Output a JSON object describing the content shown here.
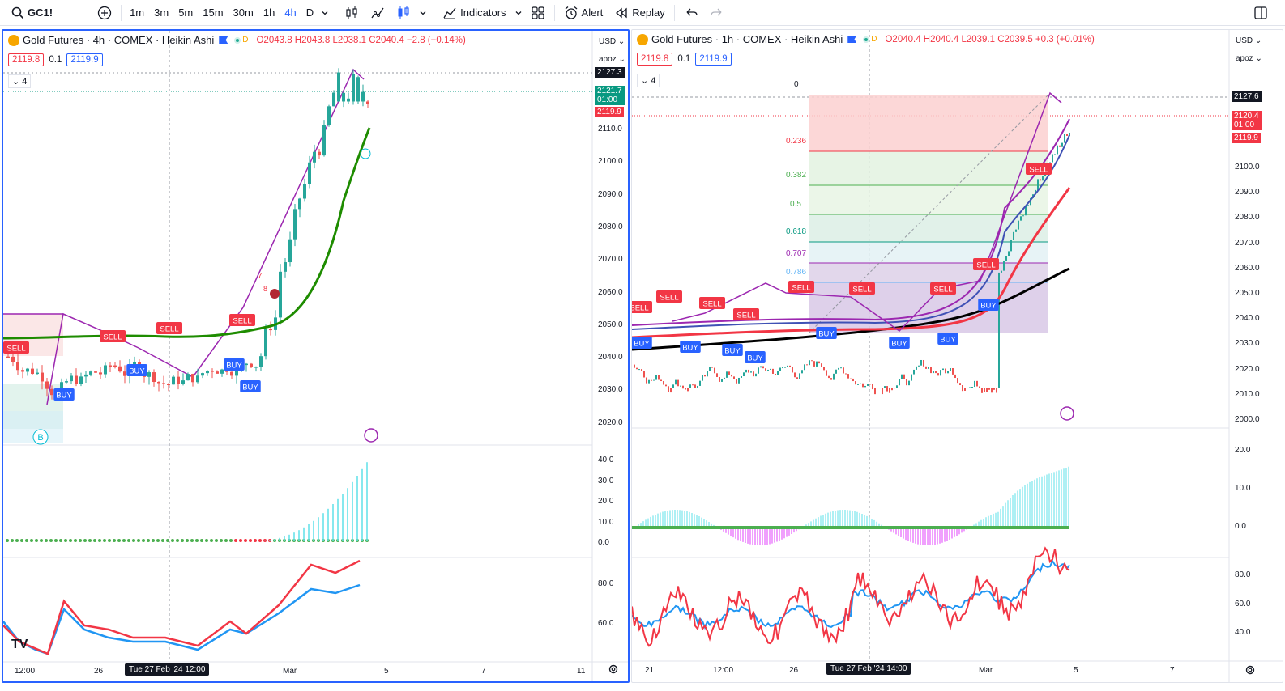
{
  "toolbar": {
    "symbol": "GC1!",
    "timeframes": [
      "1m",
      "3m",
      "5m",
      "15m",
      "30m",
      "1h",
      "4h",
      "D"
    ],
    "active_timeframe": "4h",
    "indicators_label": "Indicators",
    "alert_label": "Alert",
    "replay_label": "Replay"
  },
  "left_chart": {
    "legend": {
      "title": "Gold Futures · 4h · COMEX · Heikin Ashi",
      "badge": "D",
      "ohlc": "O2043.8 H2043.8 L2038.1 C2040.4 −2.8 (−0.14%)"
    },
    "bid": "2119.8",
    "spread": "0.1",
    "ask": "2119.9",
    "collapse_count": "4",
    "currency": "USD",
    "scale_mode": "apoz",
    "price_ticks": [
      "2110.0",
      "2100.0",
      "2090.0",
      "2080.0",
      "2070.0",
      "2060.0",
      "2050.0",
      "2040.0",
      "2030.0",
      "2020.0"
    ],
    "last_price_label": "2127.3",
    "mid_label_price": "2121.7",
    "mid_label_timer": "01:00",
    "ask_label": "2119.9",
    "osc_ticks": [
      "40.0",
      "30.0",
      "20.0",
      "10.0",
      "0.0"
    ],
    "rsi_ticks": [
      "80.0",
      "60.0"
    ],
    "date_ticks": [
      "12:00",
      "26",
      "Mar",
      "5",
      "7",
      "11"
    ],
    "cursor_date": "Tue 27 Feb '24  12:00",
    "sell_labels": [
      "SELL",
      "SELL",
      "SELL",
      "SELL"
    ],
    "buy_labels": [
      "BUY",
      "BUY",
      "BUY",
      "BUY"
    ],
    "marker_7": "7",
    "marker_8": "8",
    "marker_b": "B"
  },
  "right_chart": {
    "legend": {
      "title": "Gold Futures · 1h · COMEX · Heikin Ashi",
      "badge": "D",
      "ohlc": "O2040.4 H2040.4 L2039.1 C2039.5 +0.3 (+0.01%)"
    },
    "bid": "2119.8",
    "spread": "0.1",
    "ask": "2119.9",
    "collapse_count": "4",
    "currency": "USD",
    "scale_mode": "apoz",
    "price_ticks": [
      "2100.0",
      "2090.0",
      "2080.0",
      "2070.0",
      "2060.0",
      "2050.0",
      "2040.0",
      "2030.0",
      "2020.0",
      "2010.0",
      "2000.0"
    ],
    "cursor_price": "2127.6",
    "last_price": "2120.4",
    "last_timer": "01:00",
    "ask_label": "2119.9",
    "fib_levels": [
      "0",
      "0.236",
      "0.382",
      "0.5",
      "0.618",
      "0.707",
      "0.786"
    ],
    "osc_ticks": [
      "20.0",
      "10.0",
      "0.0"
    ],
    "rsi_ticks": [
      "80.0",
      "60.0",
      "40.0"
    ],
    "date_ticks": [
      "21",
      "12:00",
      "26",
      "Mar",
      "5",
      "7"
    ],
    "cursor_date": "Tue 27 Feb '24  14:00",
    "sell_labels": [
      "SELL",
      "SELL",
      "SELL",
      "SELL",
      "SELL",
      "SELL",
      "SELL",
      "SELL",
      "SELL"
    ],
    "buy_labels": [
      "BUY",
      "BUY",
      "BUY",
      "BUY",
      "BUY",
      "BUY",
      "BUY",
      "BUY"
    ]
  }
}
